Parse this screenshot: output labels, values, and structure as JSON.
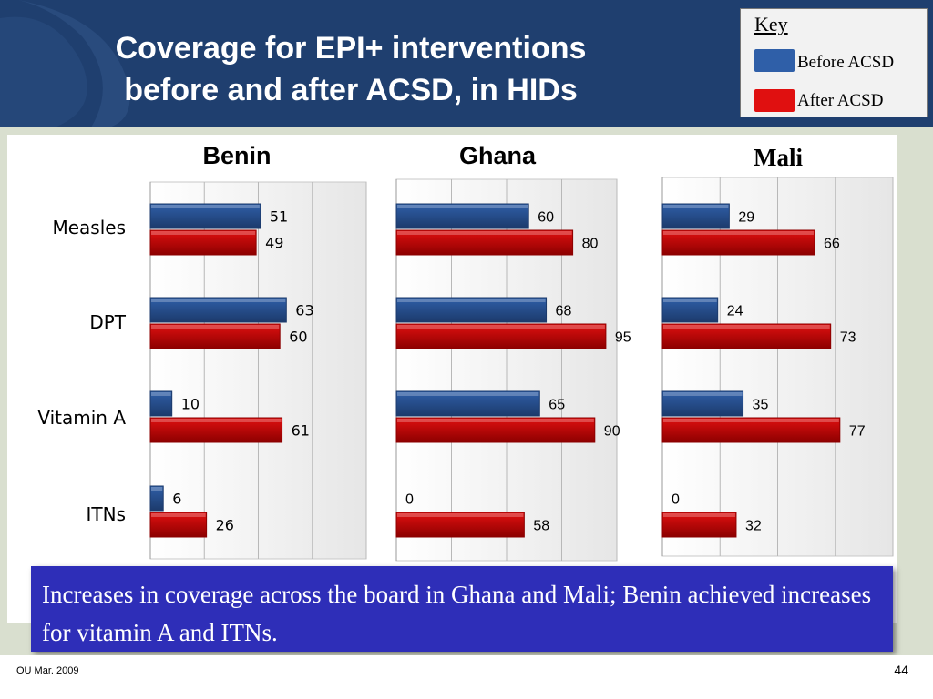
{
  "slide": {
    "title_line1": "Coverage for EPI+ interventions",
    "title_line2": "before and after ACSD, in HIDs",
    "caption": "Increases in coverage across the board in Ghana and Mali; Benin achieved increases for vitamin A and ITNs.",
    "footer_left": "OU Mar. 2009",
    "page_number": "44"
  },
  "key": {
    "title": "Key",
    "items": [
      {
        "label": "Before ACSD",
        "color": "#2f5fa8"
      },
      {
        "label": "After ACSD",
        "color": "#e01010"
      }
    ]
  },
  "colors": {
    "header_bg": "#1f3f6f",
    "caption_bg": "#2e2eb8",
    "before": "#2f5fa8",
    "after": "#e01010"
  },
  "chart_data": {
    "type": "bar",
    "orientation": "horizontal",
    "categories": [
      "Measles",
      "DPT",
      "Vitamin A",
      "ITNs"
    ],
    "panels": [
      {
        "country": "Benin",
        "series": [
          {
            "name": "Before ACSD",
            "values": [
              51,
              63,
              10,
              6
            ]
          },
          {
            "name": "After ACSD",
            "values": [
              49,
              60,
              61,
              26
            ]
          }
        ]
      },
      {
        "country": "Ghana",
        "series": [
          {
            "name": "Before ACSD",
            "values": [
              60,
              68,
              65,
              0
            ]
          },
          {
            "name": "After ACSD",
            "values": [
              80,
              95,
              90,
              58
            ]
          }
        ]
      },
      {
        "country": "Mali",
        "series": [
          {
            "name": "Before ACSD",
            "values": [
              29,
              24,
              35,
              0
            ]
          },
          {
            "name": "After ACSD",
            "values": [
              66,
              73,
              77,
              32
            ]
          }
        ]
      }
    ],
    "xlim": [
      0,
      100
    ],
    "grid": true,
    "legend": "top-right"
  }
}
